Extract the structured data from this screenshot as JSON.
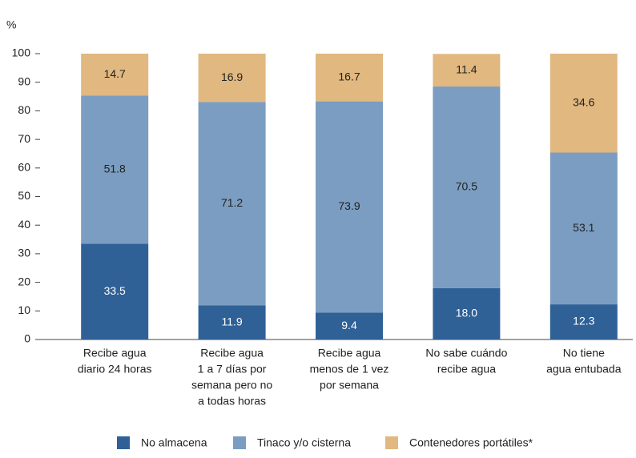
{
  "chart_data": {
    "type": "stacked_bar",
    "y_label": "%",
    "categories": [
      [
        "Recibe agua",
        "diario 24 horas"
      ],
      [
        "Recibe agua",
        "1 a 7 días por",
        "semana pero no",
        "a todas horas"
      ],
      [
        "Recibe agua",
        "menos de 1 vez",
        "por semana"
      ],
      [
        "No sabe cuándo",
        "recibe agua"
      ],
      [
        "No tiene",
        "agua entubada"
      ]
    ],
    "series": [
      {
        "name": "No almacena",
        "color": "#2f6197",
        "label_color": "#ffffff",
        "values": [
          33.5,
          11.9,
          9.4,
          18.0,
          12.3
        ],
        "value_labels": [
          "33.5",
          "11.9",
          "9.4",
          "18.0",
          "12.3"
        ]
      },
      {
        "name": "Tinaco y/o cisterna",
        "color": "#7b9dc1",
        "label_color": "#222222",
        "values": [
          51.8,
          71.2,
          73.9,
          70.5,
          53.1
        ],
        "value_labels": [
          "51.8",
          "71.2",
          "73.9",
          "70.5",
          "53.1"
        ]
      },
      {
        "name": "Contenedores portátiles*",
        "color": "#e1b87f",
        "label_color": "#222222",
        "values": [
          14.7,
          16.9,
          16.7,
          11.4,
          34.6
        ],
        "value_labels": [
          "14.7",
          "16.9",
          "16.7",
          "11.4",
          "34.6"
        ]
      }
    ],
    "ylim": [
      0,
      100
    ],
    "yticks": [
      0,
      10,
      20,
      30,
      40,
      50,
      60,
      70,
      80,
      90,
      100
    ]
  }
}
